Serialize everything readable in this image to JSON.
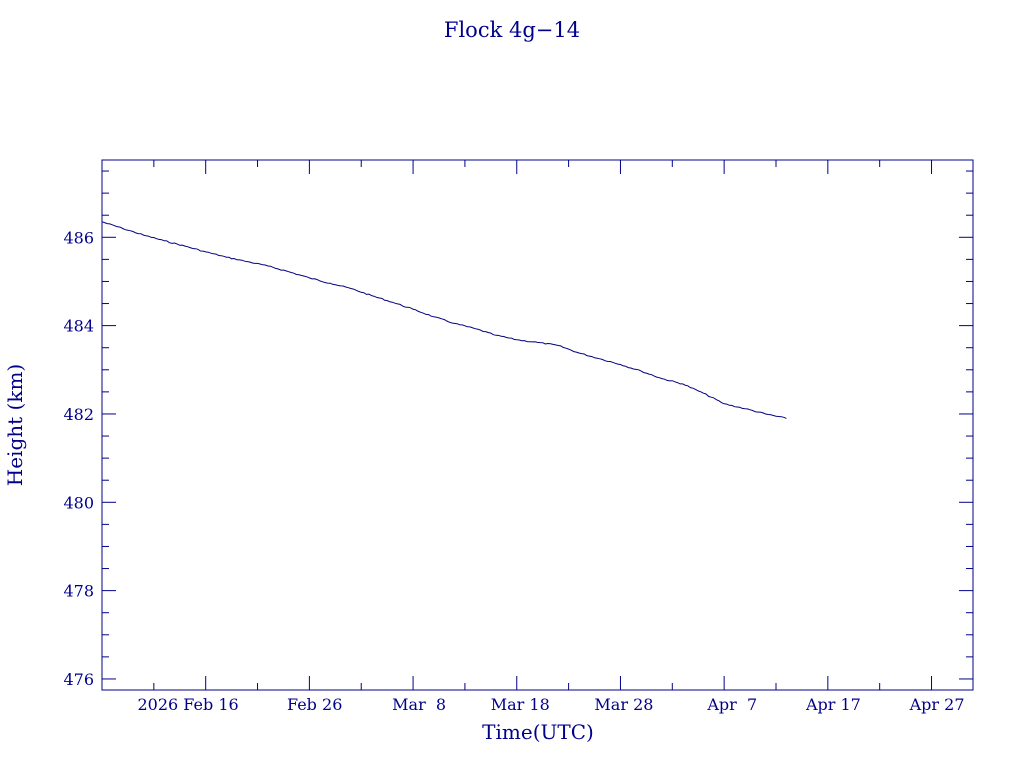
{
  "chart_data": {
    "type": "line",
    "title": "Flock 4g−14",
    "xlabel": "Time(UTC)",
    "ylabel": "Height (km)",
    "x_tick_labels": [
      "2026 Feb 16",
      "Feb 26",
      "Mar  8",
      "Mar 18",
      "Mar 28",
      "Apr  7",
      "Apr 17",
      "Apr 27"
    ],
    "x_tick_dates": [
      "2026-02-16",
      "2026-02-26",
      "2026-03-08",
      "2026-03-18",
      "2026-03-28",
      "2026-04-07",
      "2026-04-17",
      "2026-04-27"
    ],
    "y_tick_labels": [
      "476",
      "478",
      "480",
      "482",
      "484",
      "486"
    ],
    "y_ticks": [
      476,
      478,
      480,
      482,
      484,
      486
    ],
    "xlim": [
      "2026-02-06",
      "2026-05-01"
    ],
    "ylim": [
      475.75,
      487.75
    ],
    "grid": false,
    "colors": {
      "line": "#000080",
      "axes": "#00008B",
      "text": "#00008B"
    },
    "series": [
      {
        "x": [
          "2026-02-06",
          "2026-02-08",
          "2026-02-10",
          "2026-02-12",
          "2026-02-14",
          "2026-02-16",
          "2026-02-18",
          "2026-02-20",
          "2026-02-22",
          "2026-02-24",
          "2026-02-26",
          "2026-02-28",
          "2026-03-02",
          "2026-03-04",
          "2026-03-06",
          "2026-03-08",
          "2026-03-10",
          "2026-03-12",
          "2026-03-14",
          "2026-03-16",
          "2026-03-18",
          "2026-03-20",
          "2026-03-22",
          "2026-03-24",
          "2026-03-26",
          "2026-03-28",
          "2026-03-30",
          "2026-04-01",
          "2026-04-03",
          "2026-04-05",
          "2026-04-07",
          "2026-04-09",
          "2026-04-11",
          "2026-04-13"
        ],
        "y": [
          486.35,
          486.2,
          486.05,
          485.92,
          485.8,
          485.67,
          485.55,
          485.45,
          485.35,
          485.22,
          485.08,
          484.96,
          484.84,
          484.68,
          484.53,
          484.37,
          484.2,
          484.05,
          483.93,
          483.78,
          483.68,
          483.62,
          483.55,
          483.38,
          483.25,
          483.12,
          482.97,
          482.8,
          482.68,
          482.47,
          482.23,
          482.12,
          482.0,
          481.9
        ]
      }
    ]
  }
}
